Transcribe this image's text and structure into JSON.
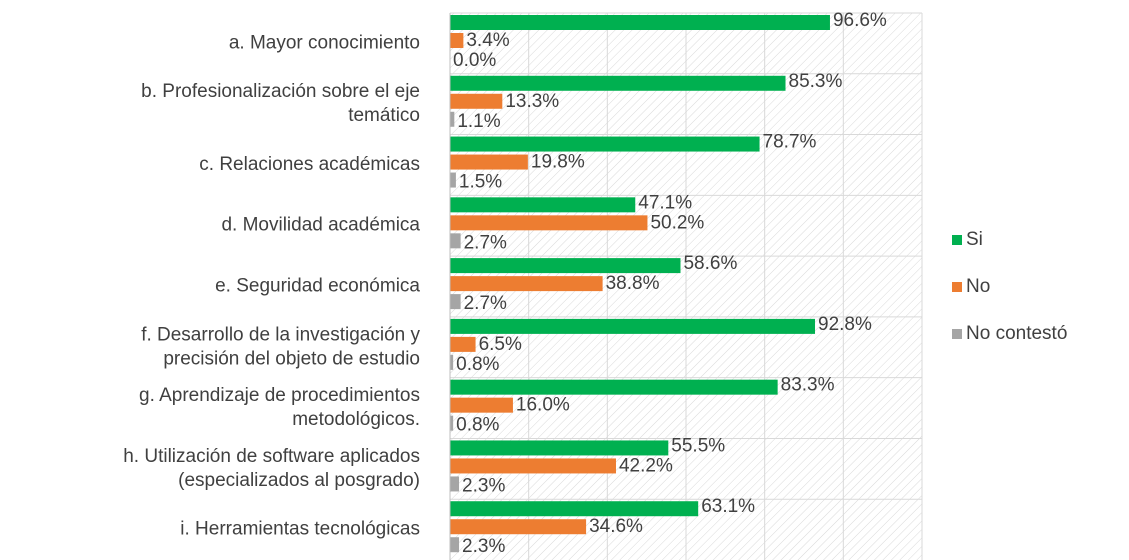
{
  "chart_data": {
    "type": "hbar",
    "categories": [
      "a. Mayor conocimiento",
      "b. Profesionalización sobre el eje\ntemático",
      "c. Relaciones académicas",
      "d. Movilidad académica",
      "e. Seguridad económica",
      "f. Desarrollo de la investigación y\nprecisión del objeto de estudio",
      "g. Aprendizaje de procedimientos\nmetodológicos.",
      "h. Utilización de software aplicados\n(especializados al posgrado)",
      "i. Herramientas tecnológicas"
    ],
    "series": [
      {
        "name": "Si",
        "color": "#00b050",
        "values": [
          96.6,
          85.3,
          78.7,
          47.1,
          58.6,
          92.8,
          83.3,
          55.5,
          63.1
        ],
        "value_labels": [
          "96.6%",
          "85.3%",
          "78.7%",
          "47.1%",
          "58.6%",
          "92.8%",
          "83.3%",
          "55.5%",
          "63.1%"
        ]
      },
      {
        "name": "No",
        "color": "#ed7d31",
        "values": [
          3.4,
          13.3,
          19.8,
          50.2,
          38.8,
          6.5,
          16.0,
          42.2,
          34.6
        ],
        "value_labels": [
          "3.4%",
          "13.3%",
          "19.8%",
          "50.2%",
          "38.8%",
          "6.5%",
          "16.0%",
          "42.2%",
          "34.6%"
        ]
      },
      {
        "name": "No contestó",
        "color": "#a5a5a5",
        "values": [
          0.0,
          1.1,
          1.5,
          2.7,
          2.7,
          0.8,
          0.8,
          2.3,
          2.3
        ],
        "value_labels": [
          "0.0%",
          "1.1%",
          "1.5%",
          "2.7%",
          "2.7%",
          "0.8%",
          "0.8%",
          "2.3%",
          "2.3%"
        ]
      }
    ],
    "xlim": [
      0,
      120
    ],
    "xticks": [
      0,
      20,
      40,
      60,
      80,
      100,
      120
    ],
    "grid": true,
    "legend": "right"
  }
}
